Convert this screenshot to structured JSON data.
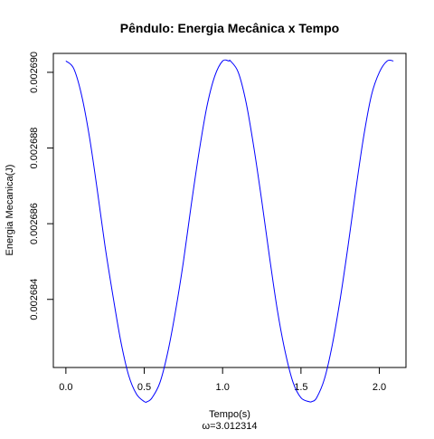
{
  "chart_data": {
    "type": "line",
    "title": "Pêndulo: Energia Mecânica x Tempo",
    "xlabel": "Tempo(s)",
    "sublabel": "ω=3.012314",
    "ylabel": "Energia Mecanica(J)",
    "xlim": [
      -0.08,
      2.17
    ],
    "ylim": [
      0.0026822,
      0.0026905
    ],
    "x_ticks": [
      0.0,
      0.5,
      1.0,
      1.5,
      2.0
    ],
    "x_tick_labels": [
      "0.0",
      "0.5",
      "1.0",
      "1.5",
      "2.0"
    ],
    "y_ticks": [
      0.002684,
      0.002686,
      0.002688,
      0.00269
    ],
    "y_tick_labels": [
      "0.002684",
      "0.002686",
      "0.002688",
      "0.002690"
    ],
    "grid": false,
    "series": [
      {
        "color": "#0000ff",
        "x": [
          0.0,
          0.05,
          0.1,
          0.15,
          0.2,
          0.25,
          0.3,
          0.35,
          0.4,
          0.45,
          0.5,
          0.52,
          0.55,
          0.6,
          0.65,
          0.7,
          0.75,
          0.8,
          0.85,
          0.9,
          0.95,
          1.0,
          1.04,
          1.05,
          1.1,
          1.15,
          1.2,
          1.25,
          1.3,
          1.35,
          1.4,
          1.45,
          1.5,
          1.55,
          1.57,
          1.6,
          1.65,
          1.7,
          1.75,
          1.8,
          1.85,
          1.9,
          1.95,
          2.0,
          2.05,
          2.09
        ],
        "y": [
          0.0026903,
          0.0026901,
          0.0026894,
          0.0026883,
          0.0026869,
          0.0026854,
          0.0026841,
          0.0026829,
          0.002682,
          0.0026815,
          0.0026813,
          0.0026813,
          0.0026814,
          0.0026818,
          0.0026826,
          0.0026837,
          0.002685,
          0.0026865,
          0.0026879,
          0.0026891,
          0.0026899,
          0.0026903,
          0.0026903,
          0.0026903,
          0.00269,
          0.0026892,
          0.002688,
          0.0026866,
          0.0026851,
          0.0026837,
          0.0026826,
          0.0026818,
          0.0026814,
          0.0026813,
          0.0026813,
          0.0026814,
          0.0026819,
          0.0026828,
          0.002684,
          0.0026854,
          0.0026869,
          0.0026883,
          0.0026894,
          0.00269,
          0.0026903,
          0.0026903
        ]
      }
    ]
  }
}
